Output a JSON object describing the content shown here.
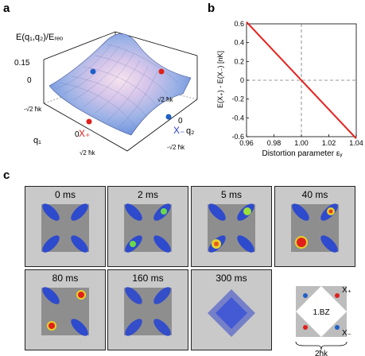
{
  "panels": {
    "a": {
      "letter": "a",
      "zlabel": "E(q₁,q₂)/Eᵣₑₒ",
      "ztick": "0.15",
      "ztick_zero": "0",
      "q1_label": "q₁",
      "q2_label": "q₂",
      "q1_zero": "0",
      "q2_zero": "0",
      "neg_tick": "-√2 ħk",
      "pos_tick": "√2 ħk",
      "xplus": "X₊",
      "xminus": "X₋",
      "colors": {
        "red_dot": "#e0201c",
        "blue_dot": "#1f5fc8",
        "xplus_color": "#e0201c",
        "xminus_color": "#2a3fcf"
      }
    },
    "b": {
      "letter": "b",
      "chart_data": {
        "type": "line",
        "xlabel": "Distortion parameter εᵧ",
        "ylabel": "E(X₊) - E(X₋)  [nK]",
        "xlim": [
          0.96,
          1.04
        ],
        "ylim": [
          -0.6,
          0.6
        ],
        "xticks": [
          "0.96",
          "0.98",
          "1.00",
          "1.02",
          "1.04"
        ],
        "yticks": [
          "0.6",
          "0.4",
          "0.2",
          "0",
          "-0.2",
          "-0.4",
          "-0.6"
        ],
        "series": [
          {
            "x": [
              0.96,
              1.04
            ],
            "y": [
              0.62,
              -0.62
            ],
            "color": "#e8201c"
          }
        ],
        "reference_lines": {
          "vertical_x": 1.0,
          "horizontal_y": 0
        }
      }
    },
    "c": {
      "letter": "c",
      "frames": [
        {
          "label": "0 ms"
        },
        {
          "label": "2 ms"
        },
        {
          "label": "5 ms"
        },
        {
          "label": "40 ms"
        },
        {
          "label": "80 ms"
        },
        {
          "label": "160 ms"
        },
        {
          "label": "300 ms"
        }
      ],
      "bz": {
        "label": "1.BZ",
        "xplus": "X₊",
        "xminus": "X₋",
        "scale": "2ħk"
      }
    }
  }
}
